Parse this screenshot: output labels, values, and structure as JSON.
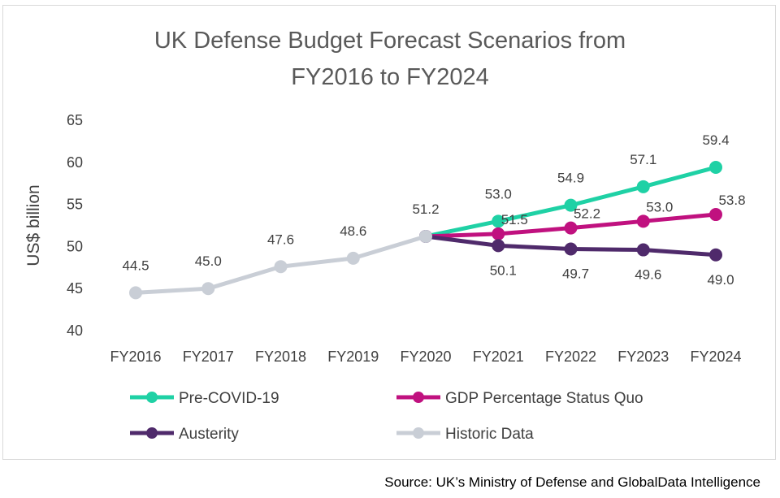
{
  "source": "Source: UK’s Ministry of Defense and GlobalData Intelligence",
  "chart_data": {
    "type": "line",
    "title": [
      "UK Defense Budget Forecast Scenarios from",
      "FY2016 to FY2024"
    ],
    "xlabel": "",
    "ylabel": "US$ billion",
    "ylim": [
      40,
      65
    ],
    "yticks": [
      40,
      45,
      50,
      55,
      60,
      65
    ],
    "categories": [
      "FY2016",
      "FY2017",
      "FY2018",
      "FY2019",
      "FY2020",
      "FY2021",
      "FY2022",
      "FY2023",
      "FY2024"
    ],
    "grid": false,
    "legend_position": "bottom",
    "series": [
      {
        "name": "Pre-COVID-19",
        "color": "#1fd1a5",
        "values": [
          null,
          null,
          null,
          null,
          51.2,
          53.0,
          54.9,
          57.1,
          59.4
        ],
        "labels": [
          null,
          null,
          null,
          null,
          null,
          "53.0",
          "54.9",
          "57.1",
          "59.4"
        ],
        "label_pos": "above"
      },
      {
        "name": "GDP Percentage Status Quo",
        "color": "#c0117f",
        "values": [
          null,
          null,
          null,
          null,
          51.2,
          51.5,
          52.2,
          53.0,
          53.8
        ],
        "labels": [
          null,
          null,
          null,
          null,
          null,
          "51.5",
          "52.2",
          "53.0",
          "53.8"
        ],
        "label_pos": "above-right"
      },
      {
        "name": "Austerity",
        "color": "#4f2a6b",
        "values": [
          null,
          null,
          null,
          null,
          51.2,
          50.1,
          49.7,
          49.6,
          49.0
        ],
        "labels": [
          null,
          null,
          null,
          null,
          null,
          "50.1",
          "49.7",
          "49.6",
          "49.0"
        ],
        "label_pos": "below"
      },
      {
        "name": "Historic Data",
        "color": "#c9ced6",
        "values": [
          44.5,
          45.0,
          47.6,
          48.6,
          51.2,
          null,
          null,
          null,
          null
        ],
        "labels": [
          "44.5",
          "45.0",
          "47.6",
          "48.6",
          "51.2",
          null,
          null,
          null,
          null
        ],
        "label_pos": "above"
      }
    ]
  }
}
